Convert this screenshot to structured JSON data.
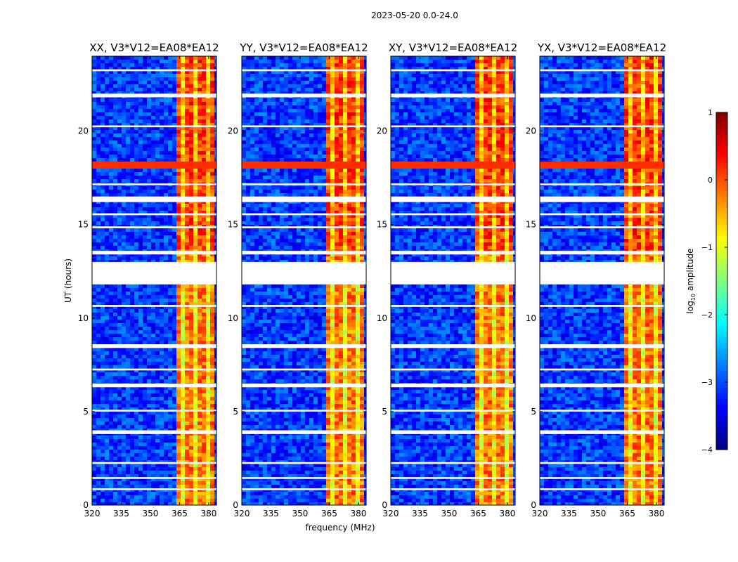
{
  "figure": {
    "suptitle": "2023-05-20 0.0-24.0",
    "colorbar_label": "log10 amplitude",
    "colorbar_label_base": "log",
    "colorbar_label_sub": "10",
    "colorbar_label_rest": " amplitude",
    "colorbar_ticks": [
      "1",
      "0",
      "−1",
      "−2",
      "−3",
      "−4"
    ],
    "colormap": [
      "#00007f",
      "#0000ff",
      "#007fff",
      "#00ffff",
      "#7fff7f",
      "#ffff00",
      "#ff7f00",
      "#ff0000",
      "#7f0000"
    ]
  },
  "chart_data": [
    {
      "type": "heatmap",
      "title": "XX, V3*V12=EA08*EA12",
      "xlabel": "",
      "ylabel": "UT (hours)",
      "xlim": [
        320,
        384
      ],
      "ylim": [
        0,
        24
      ],
      "xticks": [
        320,
        335,
        350,
        365,
        380
      ],
      "yticks": [
        0,
        5,
        10,
        15,
        20
      ],
      "color_range": [
        -4,
        1
      ]
    },
    {
      "type": "heatmap",
      "title": "YY, V3*V12=EA08*EA12",
      "xlabel": "frequency (MHz)",
      "ylabel": "",
      "xlim": [
        320,
        384
      ],
      "ylim": [
        0,
        24
      ],
      "xticks": [
        320,
        335,
        350,
        365,
        380
      ],
      "yticks": [
        0,
        5,
        10,
        15,
        20
      ],
      "color_range": [
        -4,
        1
      ]
    },
    {
      "type": "heatmap",
      "title": "XY, V3*V12=EA08*EA12",
      "xlabel": "",
      "ylabel": "",
      "xlim": [
        320,
        384
      ],
      "ylim": [
        0,
        24
      ],
      "xticks": [
        320,
        335,
        350,
        365,
        380
      ],
      "yticks": [
        0,
        5,
        10,
        15,
        20
      ],
      "color_range": [
        -4,
        1
      ]
    },
    {
      "type": "heatmap",
      "title": "YX, V3*V12=EA08*EA12",
      "xlabel": "",
      "ylabel": "",
      "xlim": [
        320,
        384
      ],
      "ylim": [
        0,
        24
      ],
      "xticks": [
        320,
        335,
        350,
        365,
        380
      ],
      "yticks": [
        0,
        5,
        10,
        15,
        20
      ],
      "color_range": [
        -4,
        1
      ]
    }
  ]
}
